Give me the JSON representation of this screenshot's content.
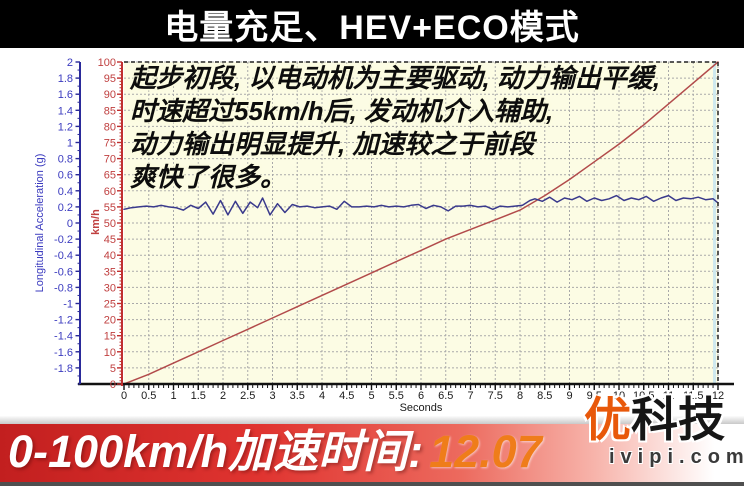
{
  "top_banner": {
    "title": "电量充足、HEV+ECO模式"
  },
  "chart": {
    "annotation_lines": [
      "起步初段, 以电动机为主要驱动, 动力输出平缓,",
      "时速超过55km/h后, 发动机介入辅助,",
      "动力输出明显提升, 加速较之于前段",
      "爽快了很多。"
    ]
  },
  "chart_data": {
    "type": "line",
    "title": "",
    "xlabel": "Seconds",
    "x_range": [
      0,
      12
    ],
    "x_ticks": [
      0,
      0.5,
      1,
      1.5,
      2,
      2.5,
      3,
      3.5,
      4,
      4.5,
      5,
      5.5,
      6,
      6.5,
      7,
      7.5,
      8,
      8.5,
      9,
      9.5,
      10,
      10.5,
      11,
      11.5,
      12
    ],
    "grid": true,
    "grid_color": "#a9a9a9",
    "plot_bg": "#fcfce4",
    "cursor_line_color": "#cfe9ee",
    "accel_axis": {
      "label": "Longitudinal Acceleration (g)",
      "range": [
        -2,
        2
      ],
      "ticks": [
        2,
        1.8,
        1.6,
        1.4,
        1.2,
        1,
        0.8,
        0.6,
        0.4,
        0.2,
        0,
        -0.2,
        -0.4,
        -0.6,
        -0.8,
        -1,
        -1.2,
        -1.4,
        -1.6,
        -1.8
      ],
      "color": "#3b3bbf",
      "axis_line_color": "#2a2a9a"
    },
    "speed_axis": {
      "label": "km/h",
      "range": [
        0,
        100
      ],
      "ticks": [
        100,
        95,
        90,
        85,
        80,
        75,
        70,
        65,
        60,
        55,
        50,
        45,
        40,
        35,
        30,
        25,
        20,
        15,
        10,
        5,
        0
      ],
      "color": "#c04040",
      "axis_line_color": "#c03030"
    },
    "series": [
      {
        "name": "Speed (km/h)",
        "axis": "speed",
        "color": "#b24b4b",
        "points": [
          [
            0,
            0
          ],
          [
            0.5,
            3
          ],
          [
            1,
            6.5
          ],
          [
            1.5,
            10
          ],
          [
            2,
            13.5
          ],
          [
            2.5,
            17
          ],
          [
            3,
            20.5
          ],
          [
            3.5,
            24
          ],
          [
            4,
            27.5
          ],
          [
            4.5,
            31
          ],
          [
            5,
            34.5
          ],
          [
            5.5,
            38
          ],
          [
            6,
            41.5
          ],
          [
            6.5,
            45
          ],
          [
            7,
            48
          ],
          [
            7.5,
            51
          ],
          [
            8,
            54
          ],
          [
            8.5,
            58.5
          ],
          [
            9,
            63.5
          ],
          [
            9.5,
            69
          ],
          [
            10,
            74.5
          ],
          [
            10.5,
            80.5
          ],
          [
            11,
            87
          ],
          [
            11.5,
            93.5
          ],
          [
            12,
            100
          ]
        ]
      },
      {
        "name": "Longitudinal Acceleration (g)",
        "axis": "accel",
        "color": "#3a3a8c",
        "points": [
          [
            0,
            0.17
          ],
          [
            0.15,
            0.19
          ],
          [
            0.3,
            0.2
          ],
          [
            0.45,
            0.21
          ],
          [
            0.6,
            0.2
          ],
          [
            0.75,
            0.22
          ],
          [
            0.9,
            0.2
          ],
          [
            1.05,
            0.19
          ],
          [
            1.2,
            0.16
          ],
          [
            1.35,
            0.22
          ],
          [
            1.5,
            0.18
          ],
          [
            1.65,
            0.26
          ],
          [
            1.8,
            0.11
          ],
          [
            1.95,
            0.28
          ],
          [
            2.1,
            0.1
          ],
          [
            2.25,
            0.27
          ],
          [
            2.4,
            0.12
          ],
          [
            2.55,
            0.26
          ],
          [
            2.7,
            0.19
          ],
          [
            2.8,
            0.31
          ],
          [
            2.95,
            0.1
          ],
          [
            3.1,
            0.24
          ],
          [
            3.25,
            0.13
          ],
          [
            3.4,
            0.23
          ],
          [
            3.55,
            0.2
          ],
          [
            3.7,
            0.21
          ],
          [
            3.85,
            0.19
          ],
          [
            4,
            0.2
          ],
          [
            4.15,
            0.21
          ],
          [
            4.3,
            0.17
          ],
          [
            4.45,
            0.27
          ],
          [
            4.6,
            0.2
          ],
          [
            4.75,
            0.2
          ],
          [
            4.9,
            0.21
          ],
          [
            5.05,
            0.2
          ],
          [
            5.2,
            0.22
          ],
          [
            5.35,
            0.2
          ],
          [
            5.5,
            0.21
          ],
          [
            5.65,
            0.2
          ],
          [
            5.8,
            0.22
          ],
          [
            5.95,
            0.23
          ],
          [
            6.1,
            0.18
          ],
          [
            6.25,
            0.22
          ],
          [
            6.4,
            0.2
          ],
          [
            6.55,
            0.15
          ],
          [
            6.7,
            0.21
          ],
          [
            6.85,
            0.21
          ],
          [
            7,
            0.22
          ],
          [
            7.15,
            0.2
          ],
          [
            7.3,
            0.21
          ],
          [
            7.45,
            0.17
          ],
          [
            7.6,
            0.21
          ],
          [
            7.75,
            0.2
          ],
          [
            7.9,
            0.21
          ],
          [
            8.05,
            0.22
          ],
          [
            8.2,
            0.28
          ],
          [
            8.3,
            0.3
          ],
          [
            8.45,
            0.27
          ],
          [
            8.6,
            0.32
          ],
          [
            8.75,
            0.26
          ],
          [
            8.9,
            0.31
          ],
          [
            9.05,
            0.29
          ],
          [
            9.2,
            0.33
          ],
          [
            9.35,
            0.27
          ],
          [
            9.5,
            0.31
          ],
          [
            9.65,
            0.28
          ],
          [
            9.8,
            0.3
          ],
          [
            9.95,
            0.34
          ],
          [
            10.1,
            0.28
          ],
          [
            10.25,
            0.31
          ],
          [
            10.4,
            0.29
          ],
          [
            10.55,
            0.33
          ],
          [
            10.7,
            0.27
          ],
          [
            10.85,
            0.31
          ],
          [
            11,
            0.34
          ],
          [
            11.15,
            0.28
          ],
          [
            11.3,
            0.31
          ],
          [
            11.45,
            0.3
          ],
          [
            11.6,
            0.32
          ],
          [
            11.75,
            0.29
          ],
          [
            11.9,
            0.3
          ],
          [
            12,
            0.25
          ]
        ]
      }
    ],
    "annotations": [
      "起步初段, 以电动机为主要驱动, 动力输出平缓, 时速超过55km/h后, 发动机介入辅助, 动力输出明显提升, 加速较之于前段爽快了很多。"
    ]
  },
  "bottom_banner": {
    "label": "0-100km/h加速时间:",
    "value": "12.07",
    "value_color": "#ef7d1a",
    "background_left": "#c21f1f",
    "background_right": "#ffffff"
  },
  "watermark": {
    "brand_orange": "优",
    "brand_black": "科技",
    "site": "ivipi.com"
  }
}
